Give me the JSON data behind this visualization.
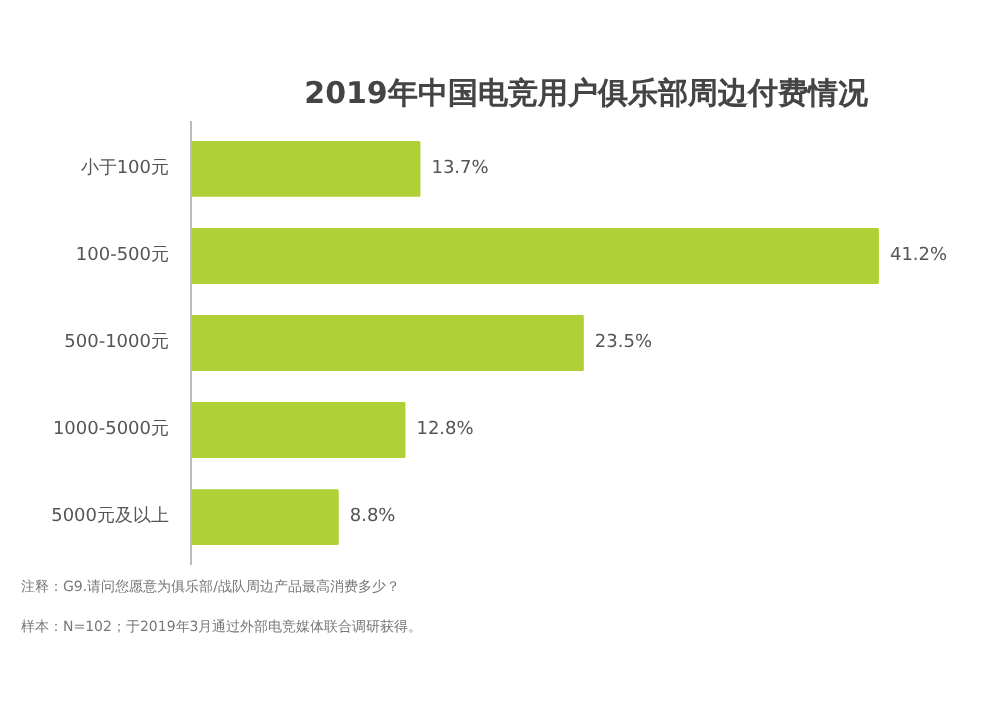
{
  "chart_data": {
    "type": "bar",
    "orientation": "horizontal",
    "title": "2019年中国电竞用户俱乐部周边付费情况",
    "categories": [
      "小于100元",
      "100-500元",
      "500-1000元",
      "1000-5000元",
      "5000元及以上"
    ],
    "values": [
      13.7,
      41.2,
      23.5,
      12.8,
      8.8
    ],
    "value_labels": [
      "13.7%",
      "41.2%",
      "23.5%",
      "12.8%",
      "8.8%"
    ],
    "color": "#afd136",
    "annotations": [
      "注释：G9.请问您愿意为俱乐部/战队周边产品最高消费多少？",
      "样本：N=102；于2019年3月通过外部电竞媒体联合调研获得。"
    ]
  }
}
